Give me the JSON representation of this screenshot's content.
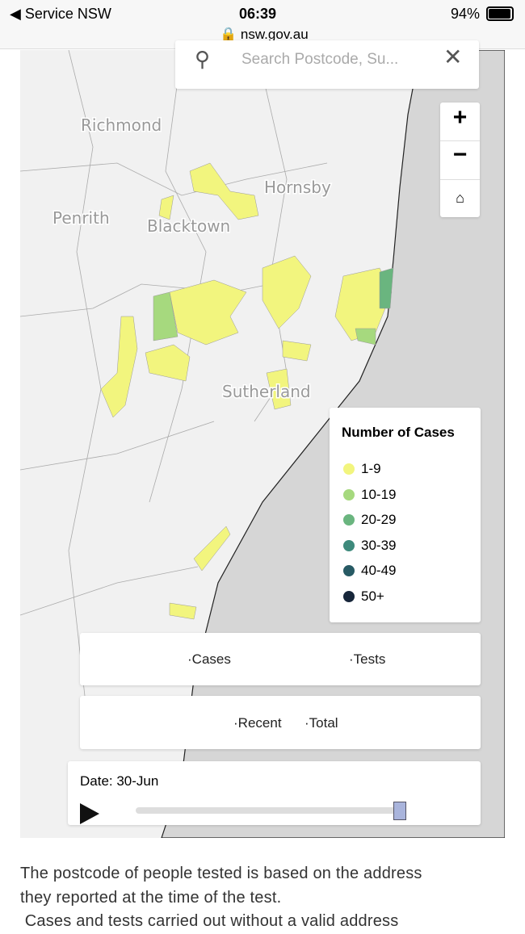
{
  "status_bar": {
    "back_app": "Service NSW",
    "time": "06:39",
    "battery": "94%",
    "url": "nsw.gov.au"
  },
  "map": {
    "search_placeholder": "Search Postcode, Su...",
    "place_labels": [
      "Richmond",
      "Hornsby",
      "Penrith",
      "Blacktown",
      "Sutherland"
    ],
    "legend": {
      "title": "Number of Cases",
      "items": [
        {
          "label": "1-9",
          "color": "#f2f57e"
        },
        {
          "label": "10-19",
          "color": "#a6d97e"
        },
        {
          "label": "20-29",
          "color": "#6ab57f"
        },
        {
          "label": "30-39",
          "color": "#3e8a7c"
        },
        {
          "label": "40-49",
          "color": "#275a64"
        },
        {
          "label": "50+",
          "color": "#17263a"
        }
      ]
    },
    "toggle_metric": [
      "Cases",
      "Tests"
    ],
    "toggle_period": [
      "Recent",
      "Total"
    ],
    "date_label": "Date: 30-Jun"
  },
  "text": [
    "The postcode of people tested is based on the address",
    "they reported at the time of the test.",
    " Cases and tests carried out without a valid address"
  ]
}
